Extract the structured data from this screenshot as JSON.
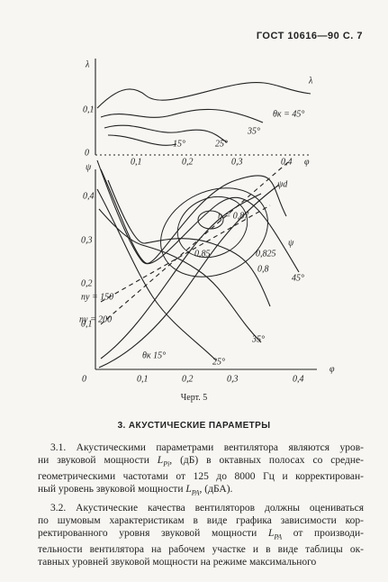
{
  "header": {
    "title": "ГОСТ 10616—90 С. 7"
  },
  "figure": {
    "upper": {
      "y_axis_label": "λ",
      "y_ticks": [
        "0,1",
        "0"
      ],
      "x_ticks": [
        "0,1",
        "0,2",
        "0,3",
        "0,4"
      ],
      "x_axis_label": "φ",
      "curve_symbol": "λ",
      "curve_labels": [
        "θк = 45°",
        "35°",
        "25°",
        "15°"
      ]
    },
    "lower": {
      "y_axis_label": "ψ",
      "y_ticks": [
        "0,4",
        "0,3",
        "0,2",
        "0,1"
      ],
      "origin": "0",
      "x_ticks": [
        "0,1",
        "0,2",
        "0,3",
        "0,4"
      ],
      "x_axis_label": "φ",
      "labels": [
        "ψd",
        "η = 0,87",
        "0,85",
        "0,825",
        "0,8",
        "ψ",
        "45°",
        "nу = 150",
        "nу = 200",
        "35°",
        "25°",
        "θк 15°"
      ]
    },
    "caption": "Черт. 5"
  },
  "section": {
    "heading": "3. АКУСТИЧЕСКИЕ ПАРАМЕТРЫ"
  },
  "body": {
    "paragraphs": [
      {
        "lines": [
          [
            "3.1. Акустическими параметрами вентилятора являются уров-"
          ],
          [
            "ни звуковой мощности ",
            {
              "italic": "L"
            },
            {
              "sub": "Pi"
            },
            ", (дБ) в октавных полосах со средне-"
          ],
          [
            "геометрическими частотами от 125 до 8000 Гц и корректирован-"
          ],
          [
            "ный уровень звуковой мощности ",
            {
              "italic": "L"
            },
            {
              "sub": "PA"
            },
            ", (дБА)."
          ]
        ]
      },
      {
        "lines": [
          [
            "3.2. Акустические качества вентиляторов должны оцениваться"
          ],
          [
            "по шумовым характеристикам в виде графика зависимости кор-"
          ],
          [
            "ректированного уровня звуковой мощности ",
            {
              "italic": "L"
            },
            {
              "sub": "PA"
            },
            " от производи-"
          ],
          [
            "тельности вентилятора на рабочем участке и в виде таблицы ок-"
          ],
          [
            "тавных уровней звуковой мощности на режиме максимального"
          ]
        ]
      }
    ]
  }
}
